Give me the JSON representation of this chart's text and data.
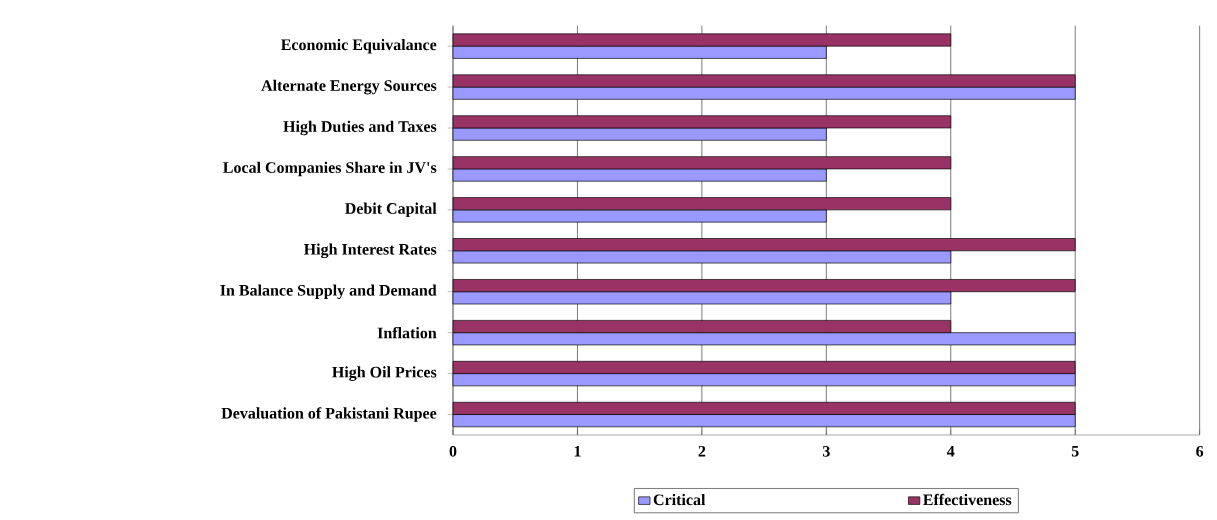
{
  "chart_data": {
    "type": "bar",
    "orientation": "horizontal",
    "categories": [
      "Economic Equivalance",
      "Alternate Energy Sources",
      "High Duties and Taxes",
      "Local Companies Share in JV's",
      "Debit Capital",
      "High Interest Rates",
      "In Balance Supply and Demand",
      "Inflation",
      "High Oil Prices",
      "Devaluation of Pakistani Rupee"
    ],
    "series": [
      {
        "name": "Critical",
        "color": "#9999ff",
        "values": [
          3,
          5,
          3,
          3,
          3,
          4,
          4,
          5,
          5,
          5
        ]
      },
      {
        "name": "Effectiveness",
        "color": "#993366",
        "values": [
          4,
          5,
          4,
          4,
          4,
          5,
          5,
          4,
          5,
          5
        ]
      }
    ],
    "xlim": [
      0,
      6
    ],
    "xticks": [
      0,
      1,
      2,
      3,
      4,
      5,
      6
    ],
    "grid": "x",
    "legend": "bottom"
  }
}
